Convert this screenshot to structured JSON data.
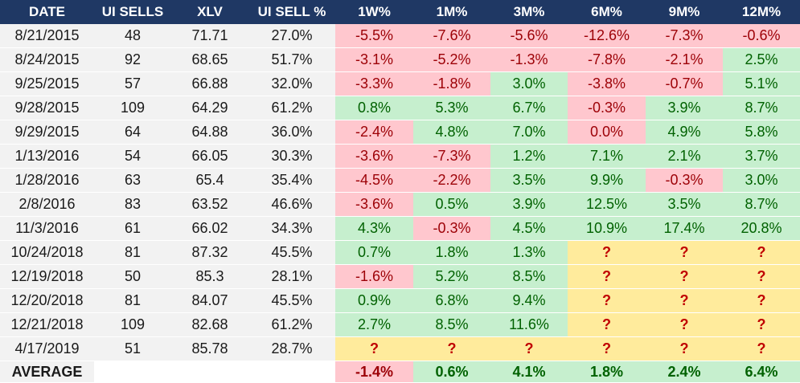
{
  "columns": [
    "DATE",
    "UI SELLS",
    "XLV",
    "UI SELL %",
    "1W%",
    "1M%",
    "3M%",
    "6M%",
    "9M%",
    "12M%"
  ],
  "rows": [
    {
      "date": "8/21/2015",
      "sells": "48",
      "xlv": "71.71",
      "pct": "27.0%",
      "returns": [
        {
          "v": "-5.5%",
          "s": "neg"
        },
        {
          "v": "-7.6%",
          "s": "neg"
        },
        {
          "v": "-5.6%",
          "s": "neg"
        },
        {
          "v": "-12.6%",
          "s": "neg"
        },
        {
          "v": "-7.3%",
          "s": "neg"
        },
        {
          "v": "-0.6%",
          "s": "neg"
        }
      ]
    },
    {
      "date": "8/24/2015",
      "sells": "92",
      "xlv": "68.65",
      "pct": "51.7%",
      "returns": [
        {
          "v": "-3.1%",
          "s": "neg"
        },
        {
          "v": "-5.2%",
          "s": "neg"
        },
        {
          "v": "-1.3%",
          "s": "neg"
        },
        {
          "v": "-7.8%",
          "s": "neg"
        },
        {
          "v": "-2.1%",
          "s": "neg"
        },
        {
          "v": "2.5%",
          "s": "pos"
        }
      ]
    },
    {
      "date": "9/25/2015",
      "sells": "57",
      "xlv": "66.88",
      "pct": "32.0%",
      "returns": [
        {
          "v": "-3.3%",
          "s": "neg"
        },
        {
          "v": "-1.8%",
          "s": "neg"
        },
        {
          "v": "3.0%",
          "s": "pos"
        },
        {
          "v": "-3.8%",
          "s": "neg"
        },
        {
          "v": "-0.7%",
          "s": "neg"
        },
        {
          "v": "5.1%",
          "s": "pos"
        }
      ]
    },
    {
      "date": "9/28/2015",
      "sells": "109",
      "xlv": "64.29",
      "pct": "61.2%",
      "returns": [
        {
          "v": "0.8%",
          "s": "pos"
        },
        {
          "v": "5.3%",
          "s": "pos"
        },
        {
          "v": "6.7%",
          "s": "pos"
        },
        {
          "v": "-0.3%",
          "s": "neg"
        },
        {
          "v": "3.9%",
          "s": "pos"
        },
        {
          "v": "8.7%",
          "s": "pos"
        }
      ]
    },
    {
      "date": "9/29/2015",
      "sells": "64",
      "xlv": "64.88",
      "pct": "36.0%",
      "returns": [
        {
          "v": "-2.4%",
          "s": "neg"
        },
        {
          "v": "4.8%",
          "s": "pos"
        },
        {
          "v": "7.0%",
          "s": "pos"
        },
        {
          "v": "0.0%",
          "s": "neg"
        },
        {
          "v": "4.9%",
          "s": "pos"
        },
        {
          "v": "5.8%",
          "s": "pos"
        }
      ]
    },
    {
      "date": "1/13/2016",
      "sells": "54",
      "xlv": "66.05",
      "pct": "30.3%",
      "returns": [
        {
          "v": "-3.6%",
          "s": "neg"
        },
        {
          "v": "-7.3%",
          "s": "neg"
        },
        {
          "v": "1.2%",
          "s": "pos"
        },
        {
          "v": "7.1%",
          "s": "pos"
        },
        {
          "v": "2.1%",
          "s": "pos"
        },
        {
          "v": "3.7%",
          "s": "pos"
        }
      ]
    },
    {
      "date": "1/28/2016",
      "sells": "63",
      "xlv": "65.4",
      "pct": "35.4%",
      "returns": [
        {
          "v": "-4.5%",
          "s": "neg"
        },
        {
          "v": "-2.2%",
          "s": "neg"
        },
        {
          "v": "3.5%",
          "s": "pos"
        },
        {
          "v": "9.9%",
          "s": "pos"
        },
        {
          "v": "-0.3%",
          "s": "neg"
        },
        {
          "v": "3.0%",
          "s": "pos"
        }
      ]
    },
    {
      "date": "2/8/2016",
      "sells": "83",
      "xlv": "63.52",
      "pct": "46.6%",
      "returns": [
        {
          "v": "-3.6%",
          "s": "neg"
        },
        {
          "v": "0.5%",
          "s": "pos"
        },
        {
          "v": "3.9%",
          "s": "pos"
        },
        {
          "v": "12.5%",
          "s": "pos"
        },
        {
          "v": "3.5%",
          "s": "pos"
        },
        {
          "v": "8.7%",
          "s": "pos"
        }
      ]
    },
    {
      "date": "11/3/2016",
      "sells": "61",
      "xlv": "66.02",
      "pct": "34.3%",
      "returns": [
        {
          "v": "4.3%",
          "s": "pos"
        },
        {
          "v": "-0.3%",
          "s": "neg"
        },
        {
          "v": "4.5%",
          "s": "pos"
        },
        {
          "v": "10.9%",
          "s": "pos"
        },
        {
          "v": "17.4%",
          "s": "pos"
        },
        {
          "v": "20.8%",
          "s": "pos"
        }
      ]
    },
    {
      "date": "10/24/2018",
      "sells": "81",
      "xlv": "87.32",
      "pct": "45.5%",
      "returns": [
        {
          "v": "0.7%",
          "s": "pos"
        },
        {
          "v": "1.8%",
          "s": "pos"
        },
        {
          "v": "1.3%",
          "s": "pos"
        },
        {
          "v": "?",
          "s": "unk"
        },
        {
          "v": "?",
          "s": "unk"
        },
        {
          "v": "?",
          "s": "unk"
        }
      ]
    },
    {
      "date": "12/19/2018",
      "sells": "50",
      "xlv": "85.3",
      "pct": "28.1%",
      "returns": [
        {
          "v": "-1.6%",
          "s": "neg"
        },
        {
          "v": "5.2%",
          "s": "pos"
        },
        {
          "v": "8.5%",
          "s": "pos"
        },
        {
          "v": "?",
          "s": "unk"
        },
        {
          "v": "?",
          "s": "unk"
        },
        {
          "v": "?",
          "s": "unk"
        }
      ]
    },
    {
      "date": "12/20/2018",
      "sells": "81",
      "xlv": "84.07",
      "pct": "45.5%",
      "returns": [
        {
          "v": "0.9%",
          "s": "pos"
        },
        {
          "v": "6.8%",
          "s": "pos"
        },
        {
          "v": "9.4%",
          "s": "pos"
        },
        {
          "v": "?",
          "s": "unk"
        },
        {
          "v": "?",
          "s": "unk"
        },
        {
          "v": "?",
          "s": "unk"
        }
      ]
    },
    {
      "date": "12/21/2018",
      "sells": "109",
      "xlv": "82.68",
      "pct": "61.2%",
      "returns": [
        {
          "v": "2.7%",
          "s": "pos"
        },
        {
          "v": "8.5%",
          "s": "pos"
        },
        {
          "v": "11.6%",
          "s": "pos"
        },
        {
          "v": "?",
          "s": "unk"
        },
        {
          "v": "?",
          "s": "unk"
        },
        {
          "v": "?",
          "s": "unk"
        }
      ]
    },
    {
      "date": "4/17/2019",
      "sells": "51",
      "xlv": "85.78",
      "pct": "28.7%",
      "returns": [
        {
          "v": "?",
          "s": "unk"
        },
        {
          "v": "?",
          "s": "unk"
        },
        {
          "v": "?",
          "s": "unk"
        },
        {
          "v": "?",
          "s": "unk"
        },
        {
          "v": "?",
          "s": "unk"
        },
        {
          "v": "?",
          "s": "unk"
        }
      ]
    }
  ],
  "average": {
    "label": "AVERAGE",
    "values": [
      {
        "v": "-1.4%",
        "s": "neg"
      },
      {
        "v": "0.6%",
        "s": "pos"
      },
      {
        "v": "4.1%",
        "s": "pos"
      },
      {
        "v": "1.8%",
        "s": "pos"
      },
      {
        "v": "2.4%",
        "s": "pos"
      },
      {
        "v": "6.4%",
        "s": "pos"
      }
    ]
  }
}
